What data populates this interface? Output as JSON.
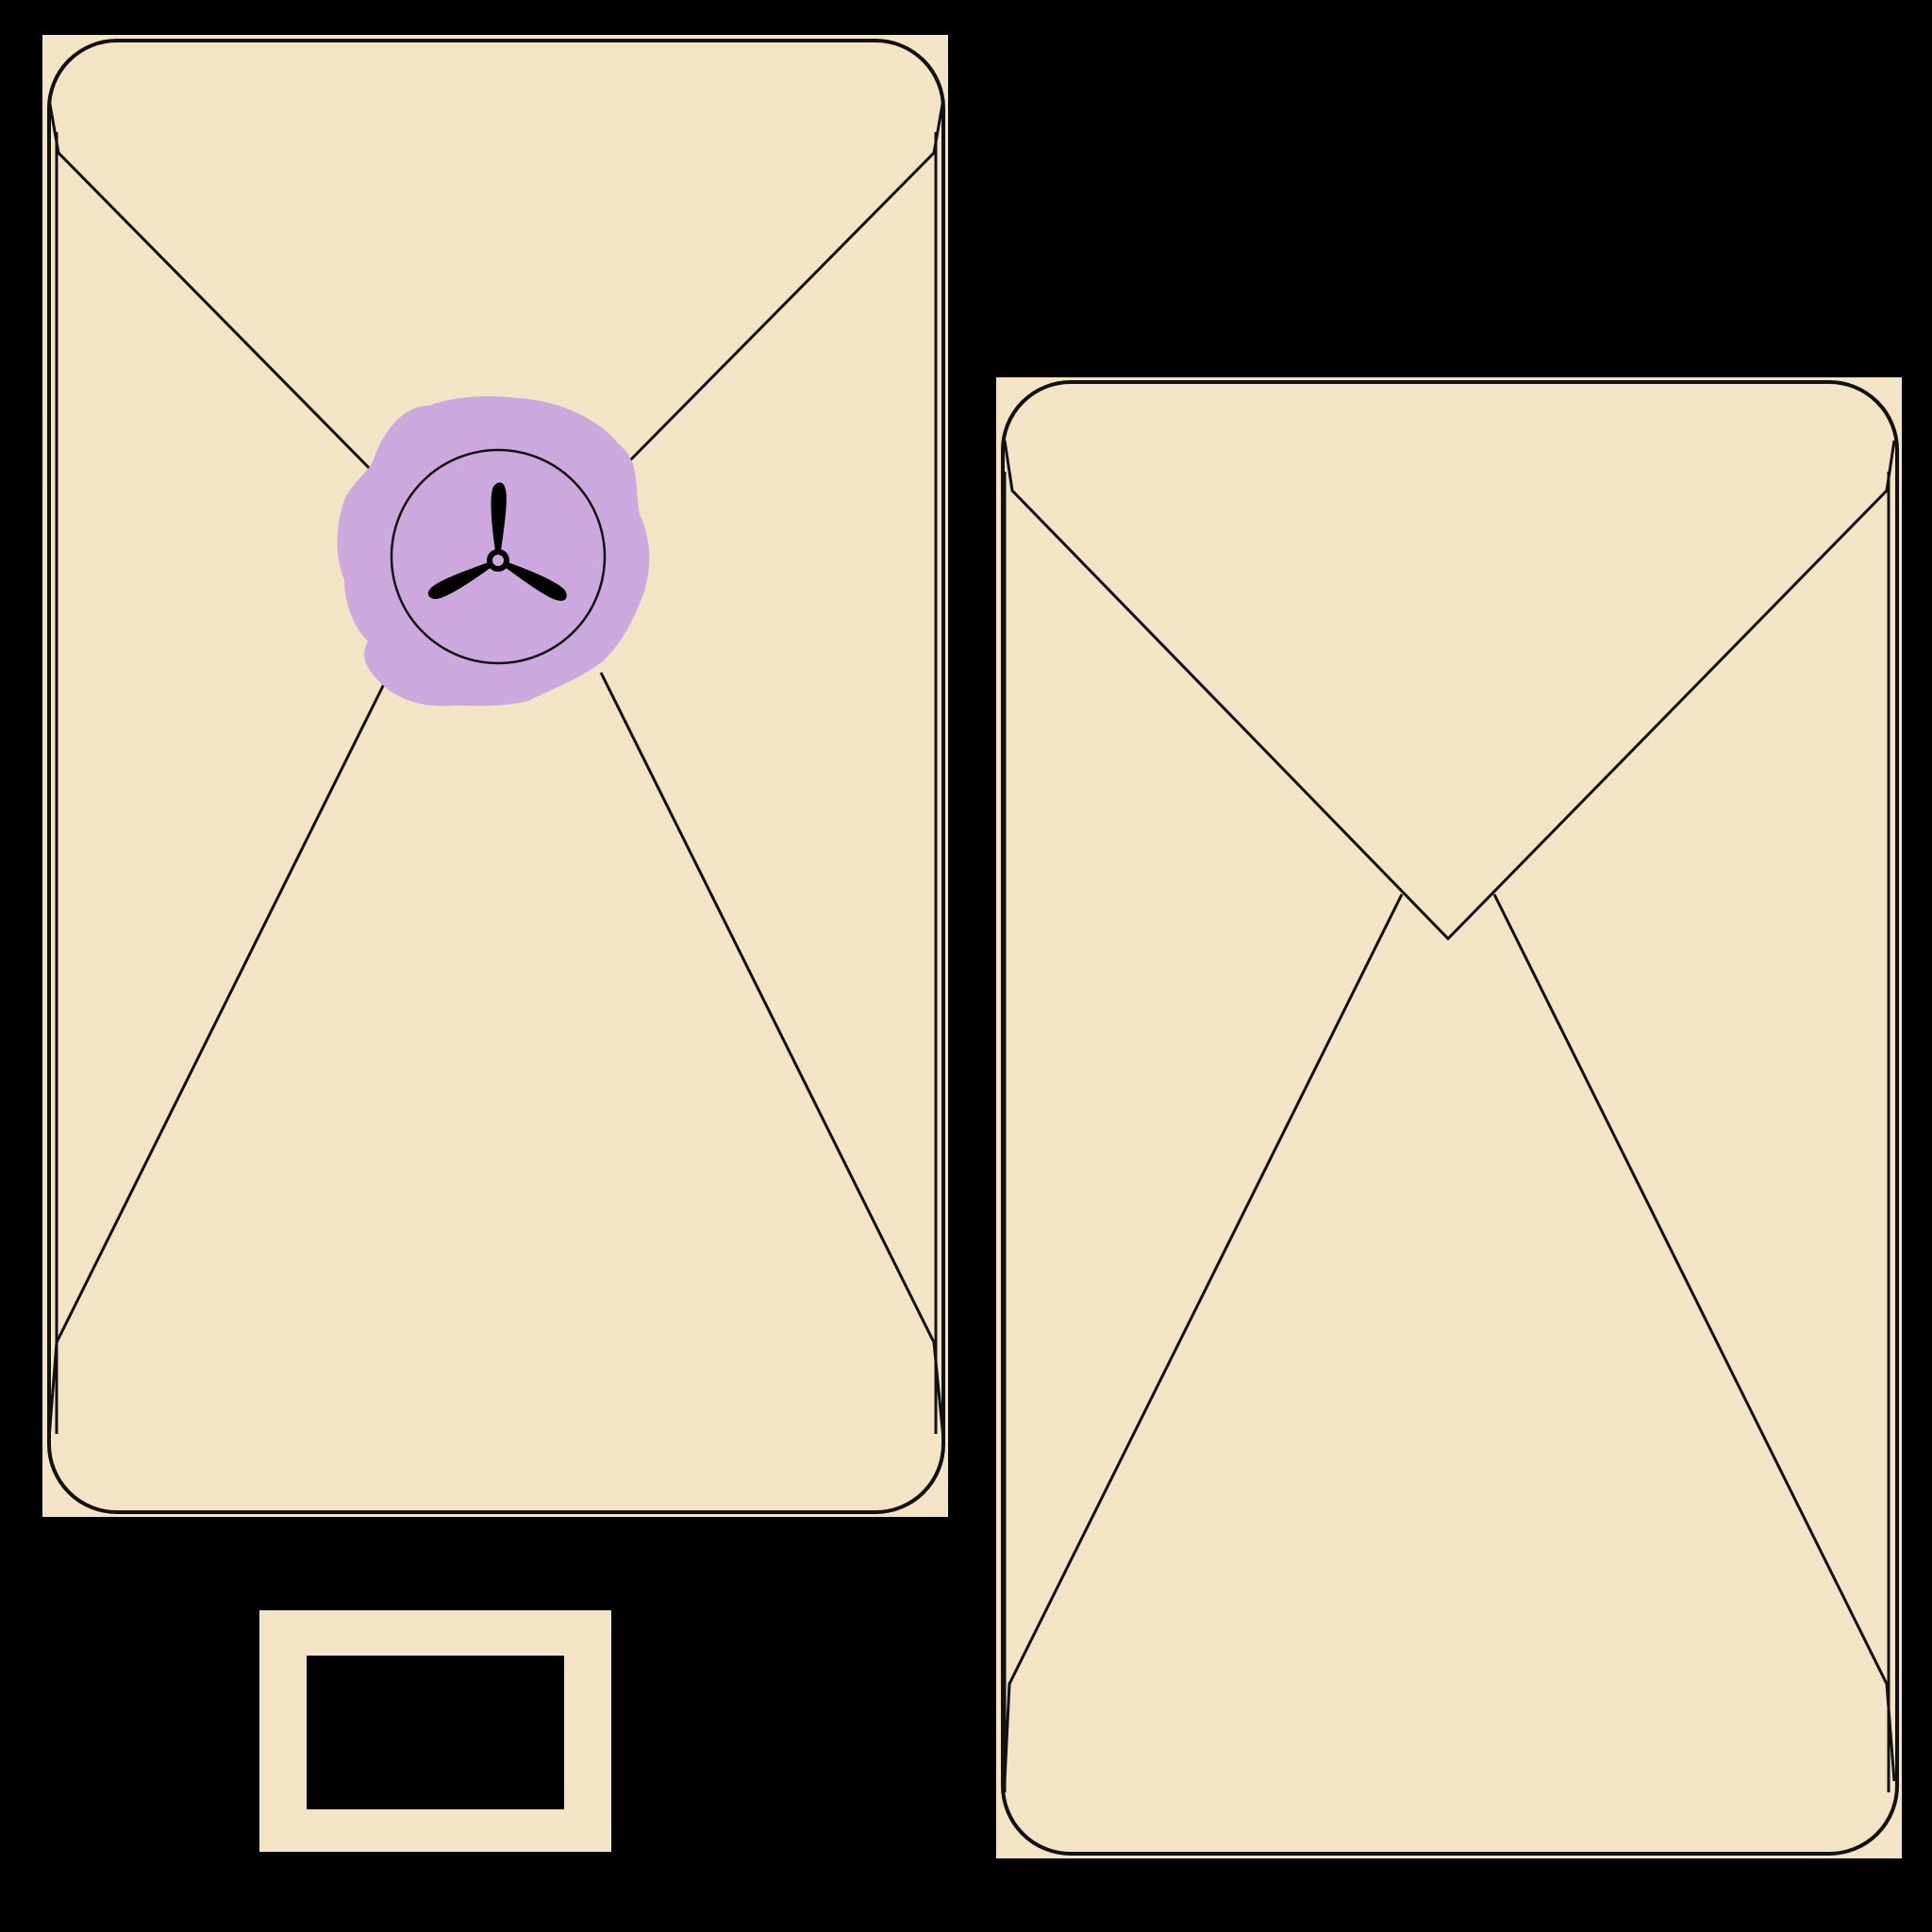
{
  "canvas": {
    "background_color": "#000000"
  },
  "envelopes": [
    {
      "name": "sealed-envelope",
      "state": "closed",
      "has_seal": true
    },
    {
      "name": "open-envelope",
      "state": "flap-folded",
      "has_seal": false
    }
  ],
  "seal": {
    "shape": "wax-blob",
    "emblem": "propeller-icon",
    "blade_count": 3
  },
  "small_card": {
    "shape": "frame"
  },
  "colors": {
    "paper": "#F2E4C5",
    "outline": "#111111",
    "wax": "#CDA8DE",
    "emblem": "#000000"
  }
}
